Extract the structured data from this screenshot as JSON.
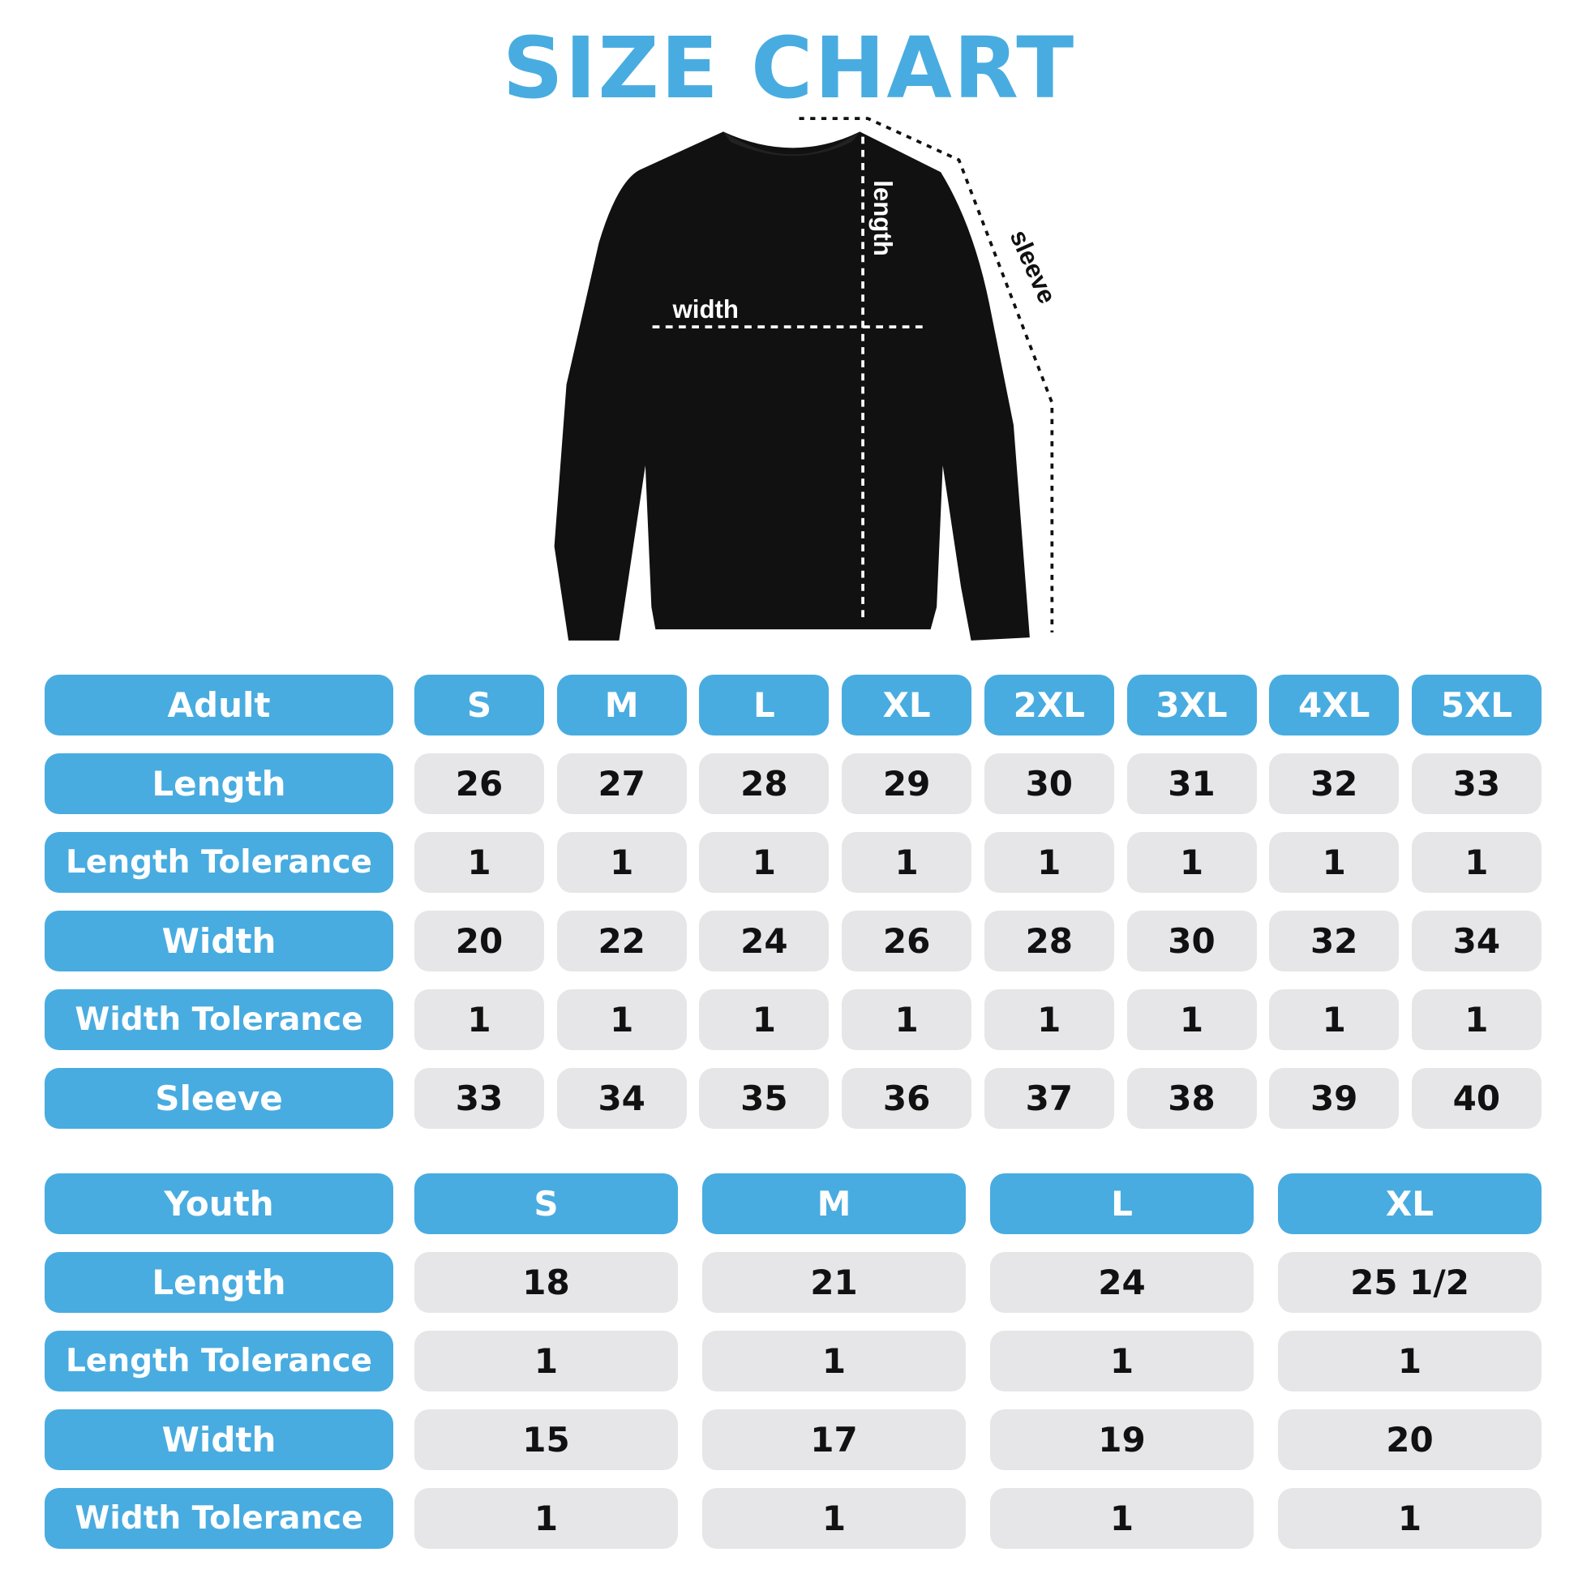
{
  "title": "SIZE CHART",
  "colors": {
    "accent": "#48ACE0",
    "cell": "#E6E6E8",
    "text": "#111111"
  },
  "diagram": {
    "width_label": "width",
    "length_label": "length",
    "sleeve_label": "sleeve"
  },
  "adult": {
    "header": "Adult",
    "sizes": [
      "S",
      "M",
      "L",
      "XL",
      "2XL",
      "3XL",
      "4XL",
      "5XL"
    ],
    "rows": [
      {
        "label": "Length",
        "values": [
          "26",
          "27",
          "28",
          "29",
          "30",
          "31",
          "32",
          "33"
        ]
      },
      {
        "label": "Length Tolerance",
        "values": [
          "1",
          "1",
          "1",
          "1",
          "1",
          "1",
          "1",
          "1"
        ]
      },
      {
        "label": "Width",
        "values": [
          "20",
          "22",
          "24",
          "26",
          "28",
          "30",
          "32",
          "34"
        ]
      },
      {
        "label": "Width Tolerance",
        "values": [
          "1",
          "1",
          "1",
          "1",
          "1",
          "1",
          "1",
          "1"
        ]
      },
      {
        "label": "Sleeve",
        "values": [
          "33",
          "34",
          "35",
          "36",
          "37",
          "38",
          "39",
          "40"
        ]
      }
    ]
  },
  "youth": {
    "header": "Youth",
    "sizes": [
      "S",
      "M",
      "L",
      "XL"
    ],
    "rows": [
      {
        "label": "Length",
        "values": [
          "18",
          "21",
          "24",
          "25 1/2"
        ]
      },
      {
        "label": "Length Tolerance",
        "values": [
          "1",
          "1",
          "1",
          "1"
        ]
      },
      {
        "label": "Width",
        "values": [
          "15",
          "17",
          "19",
          "20"
        ]
      },
      {
        "label": "Width Tolerance",
        "values": [
          "1",
          "1",
          "1",
          "1"
        ]
      }
    ]
  }
}
